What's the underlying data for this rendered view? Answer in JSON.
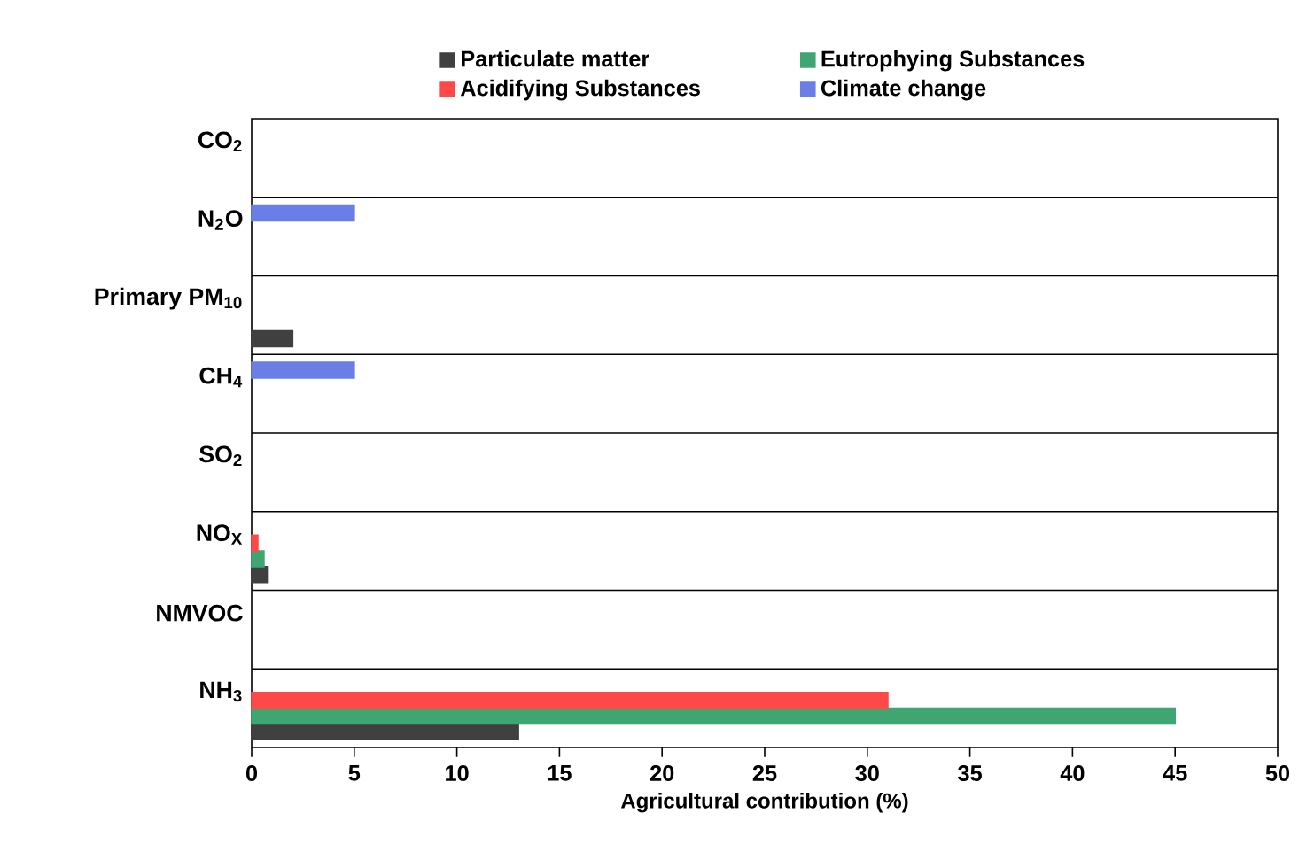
{
  "chart_data": {
    "type": "bar",
    "orientation": "horizontal",
    "xlabel": "Agricultural contribution (%)",
    "categories": [
      "CO$_{2}$",
      "N$_{2}$O",
      "Primary PM$_{10}$",
      "CH$_{4}$",
      "SO$_{2}$",
      "NO$_{X}$",
      "NMVOC",
      "NH$_{3}$"
    ],
    "series": [
      {
        "name": "Particulate matter",
        "color": "#404040",
        "values": [
          null,
          null,
          2,
          null,
          null,
          0.8,
          null,
          13
        ]
      },
      {
        "name": "Eutrophying Substances",
        "color": "#3fa672",
        "values": [
          null,
          null,
          null,
          null,
          null,
          0.6,
          null,
          45
        ]
      },
      {
        "name": "Acidifying Substances",
        "color": "#ff4848",
        "values": [
          null,
          null,
          null,
          null,
          null,
          0.3,
          null,
          31
        ]
      },
      {
        "name": "Climate change",
        "color": "#6a7fe6",
        "values": [
          null,
          5,
          null,
          5,
          null,
          null,
          null,
          null
        ]
      }
    ],
    "xlim": [
      0,
      50
    ],
    "xticks": [
      0,
      5,
      10,
      15,
      20,
      25,
      30,
      35,
      40,
      45,
      50
    ],
    "grid": "y",
    "legend": "top"
  }
}
